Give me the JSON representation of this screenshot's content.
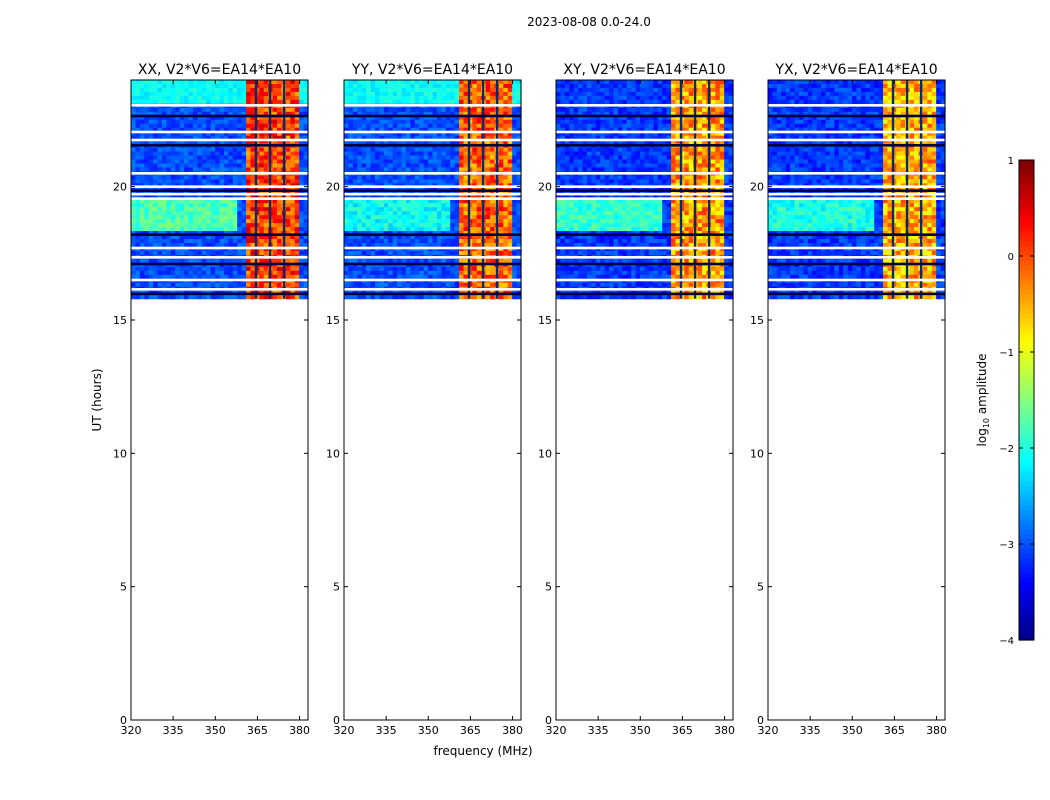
{
  "figure_title": "2023-08-08 0.0-24.0",
  "ylabel": "UT (hours)",
  "xlabel": "frequency (MHz)",
  "chart_data": {
    "type": "heatmap",
    "title": "2023-08-08 0.0-24.0",
    "xlabel": "frequency (MHz)",
    "ylabel": "UT (hours)",
    "xlim": [
      320,
      383
    ],
    "ylim": [
      0,
      24
    ],
    "xticks": [
      320,
      335,
      350,
      365,
      380
    ],
    "yticks": [
      0,
      5,
      10,
      15,
      20
    ],
    "data_start_hour": 15.8,
    "strong_band_mhz": [
      360.5,
      380.5
    ],
    "channel_gaps_mhz": [
      364.5,
      369.5,
      374.5
    ],
    "blank_rows_hours": [
      23.05,
      22.65,
      22.05,
      21.75,
      21.55,
      20.5,
      20.0,
      19.85,
      19.72,
      19.55,
      18.2,
      17.7,
      17.35,
      17.1,
      16.5,
      16.15,
      15.98
    ],
    "colorbar": {
      "label": "log10 amplitude",
      "label_main": "log",
      "label_sub": "10",
      "label_rest": " amplitude",
      "min": -4,
      "max": 1,
      "ticks": [
        1,
        0,
        -1,
        -2,
        -3,
        -4
      ],
      "tick_labels": [
        "1",
        "0",
        "−1",
        "−2",
        "−3",
        "−4"
      ],
      "colormap": "jet"
    },
    "panels": [
      {
        "title": "XX, V2*V6=EA14*EA10",
        "band_level": 0.82,
        "background_level": 0.2,
        "patch_level": 0.45,
        "patch_hours": [
          18.3,
          19.6
        ]
      },
      {
        "title": "YY, V2*V6=EA14*EA10",
        "band_level": 0.78,
        "background_level": 0.2,
        "patch_level": 0.38,
        "patch_hours": [
          18.4,
          19.6
        ]
      },
      {
        "title": "XY, V2*V6=EA14*EA10",
        "band_level": 0.72,
        "background_level": 0.18,
        "patch_level": 0.42,
        "patch_hours": [
          18.3,
          19.6
        ]
      },
      {
        "title": "YX, V2*V6=EA14*EA10",
        "band_level": 0.7,
        "background_level": 0.18,
        "patch_level": 0.4,
        "patch_hours": [
          18.3,
          19.6
        ]
      }
    ]
  }
}
